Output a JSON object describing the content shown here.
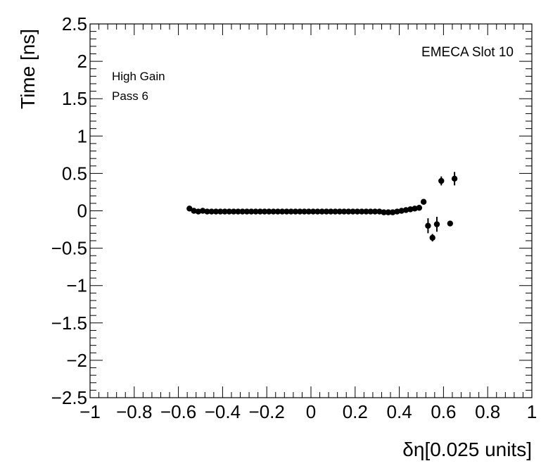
{
  "chart_data": {
    "type": "scatter",
    "title": "",
    "xlabel": "δη[0.025 units]",
    "ylabel": "Time [ns]",
    "xlim": [
      -1,
      1
    ],
    "ylim": [
      -2.5,
      2.5
    ],
    "x_ticks": [
      -1,
      -0.8,
      -0.6,
      -0.4,
      -0.2,
      0,
      0.2,
      0.4,
      0.6,
      0.8,
      1
    ],
    "x_tick_labels": [
      "−1",
      "−0.8",
      "−0.6",
      "−0.4",
      "−0.2",
      "0",
      "0.2",
      "0.4",
      "0.6",
      "0.8",
      "1"
    ],
    "y_ticks": [
      -2.5,
      -2,
      -1.5,
      -1,
      -0.5,
      0,
      0.5,
      1,
      1.5,
      2,
      2.5
    ],
    "y_tick_labels": [
      "−2.5",
      "−2",
      "−1.5",
      "−1",
      "−0.5",
      "0",
      "0.5",
      "1",
      "1.5",
      "2",
      "2.5"
    ],
    "grid": false,
    "annotations": {
      "top_right": "EMECA Slot 10",
      "gain": "High Gain",
      "pass": "Pass 6"
    },
    "series": [
      {
        "marker_color": "#000000",
        "points": [
          {
            "x": -0.55,
            "y": 0.03,
            "err": 0.0
          },
          {
            "x": -0.53,
            "y": 0.0,
            "err": 0.0
          },
          {
            "x": -0.51,
            "y": -0.01,
            "err": 0.0
          },
          {
            "x": -0.49,
            "y": 0.0,
            "err": 0.0
          },
          {
            "x": -0.47,
            "y": -0.01,
            "err": 0.0
          },
          {
            "x": -0.45,
            "y": -0.01,
            "err": 0.0
          },
          {
            "x": -0.43,
            "y": -0.01,
            "err": 0.0
          },
          {
            "x": -0.41,
            "y": -0.01,
            "err": 0.0
          },
          {
            "x": -0.39,
            "y": -0.01,
            "err": 0.0
          },
          {
            "x": -0.37,
            "y": -0.01,
            "err": 0.0
          },
          {
            "x": -0.35,
            "y": -0.01,
            "err": 0.0
          },
          {
            "x": -0.33,
            "y": -0.01,
            "err": 0.0
          },
          {
            "x": -0.31,
            "y": -0.01,
            "err": 0.0
          },
          {
            "x": -0.29,
            "y": -0.01,
            "err": 0.0
          },
          {
            "x": -0.27,
            "y": -0.01,
            "err": 0.0
          },
          {
            "x": -0.25,
            "y": -0.01,
            "err": 0.0
          },
          {
            "x": -0.23,
            "y": -0.01,
            "err": 0.0
          },
          {
            "x": -0.21,
            "y": -0.01,
            "err": 0.0
          },
          {
            "x": -0.19,
            "y": -0.01,
            "err": 0.0
          },
          {
            "x": -0.17,
            "y": -0.01,
            "err": 0.0
          },
          {
            "x": -0.15,
            "y": -0.01,
            "err": 0.0
          },
          {
            "x": -0.13,
            "y": -0.01,
            "err": 0.0
          },
          {
            "x": -0.11,
            "y": -0.01,
            "err": 0.0
          },
          {
            "x": -0.09,
            "y": -0.01,
            "err": 0.0
          },
          {
            "x": -0.07,
            "y": -0.01,
            "err": 0.0
          },
          {
            "x": -0.05,
            "y": -0.01,
            "err": 0.0
          },
          {
            "x": -0.03,
            "y": -0.01,
            "err": 0.0
          },
          {
            "x": -0.01,
            "y": -0.01,
            "err": 0.0
          },
          {
            "x": 0.01,
            "y": -0.01,
            "err": 0.0
          },
          {
            "x": 0.03,
            "y": -0.01,
            "err": 0.0
          },
          {
            "x": 0.05,
            "y": -0.01,
            "err": 0.0
          },
          {
            "x": 0.07,
            "y": -0.01,
            "err": 0.0
          },
          {
            "x": 0.09,
            "y": -0.01,
            "err": 0.0
          },
          {
            "x": 0.11,
            "y": -0.01,
            "err": 0.0
          },
          {
            "x": 0.13,
            "y": -0.01,
            "err": 0.0
          },
          {
            "x": 0.15,
            "y": -0.01,
            "err": 0.0
          },
          {
            "x": 0.17,
            "y": -0.01,
            "err": 0.0
          },
          {
            "x": 0.19,
            "y": -0.01,
            "err": 0.0
          },
          {
            "x": 0.21,
            "y": -0.01,
            "err": 0.0
          },
          {
            "x": 0.23,
            "y": -0.01,
            "err": 0.0
          },
          {
            "x": 0.25,
            "y": -0.01,
            "err": 0.0
          },
          {
            "x": 0.27,
            "y": -0.01,
            "err": 0.0
          },
          {
            "x": 0.29,
            "y": -0.01,
            "err": 0.0
          },
          {
            "x": 0.31,
            "y": -0.01,
            "err": 0.0
          },
          {
            "x": 0.33,
            "y": -0.02,
            "err": 0.0
          },
          {
            "x": 0.35,
            "y": -0.02,
            "err": 0.0
          },
          {
            "x": 0.37,
            "y": -0.02,
            "err": 0.0
          },
          {
            "x": 0.39,
            "y": -0.01,
            "err": 0.0
          },
          {
            "x": 0.41,
            "y": 0.0,
            "err": 0.0
          },
          {
            "x": 0.43,
            "y": 0.01,
            "err": 0.0
          },
          {
            "x": 0.45,
            "y": 0.02,
            "err": 0.0
          },
          {
            "x": 0.47,
            "y": 0.03,
            "err": 0.0
          },
          {
            "x": 0.49,
            "y": 0.04,
            "err": 0.02
          },
          {
            "x": 0.51,
            "y": 0.12,
            "err": 0.03
          },
          {
            "x": 0.53,
            "y": -0.2,
            "err": 0.1
          },
          {
            "x": 0.55,
            "y": -0.36,
            "err": 0.05
          },
          {
            "x": 0.57,
            "y": -0.18,
            "err": 0.1
          },
          {
            "x": 0.59,
            "y": 0.4,
            "err": 0.06
          },
          {
            "x": 0.63,
            "y": -0.17,
            "err": 0.03
          },
          {
            "x": 0.65,
            "y": 0.43,
            "err": 0.09
          }
        ]
      }
    ]
  }
}
